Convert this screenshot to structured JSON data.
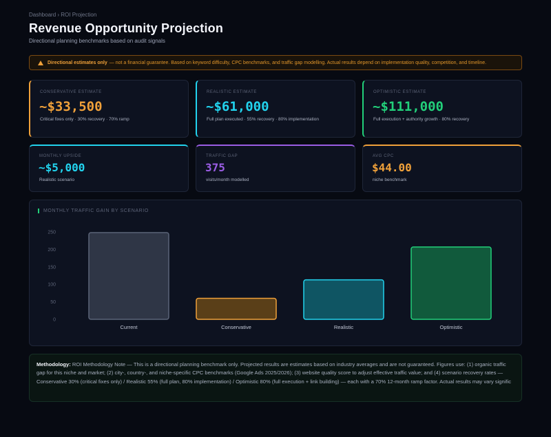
{
  "breadcrumb": "Dashboard › ROI Projection",
  "page": {
    "title": "Revenue Opportunity Projection",
    "subtitle": "Directional planning benchmarks based on audit signals"
  },
  "alert": {
    "strong": "Directional estimates only",
    "text": "— not a financial guarantee. Based on keyword difficulty, CPC benchmarks, and traffic gap modelling. Actual results depend on implementation quality, competition, and timeline."
  },
  "estimates": {
    "conservative": {
      "label": "Conservative Estimate",
      "value": "~$33,500",
      "sub": "Critical fixes only · 30% recovery · 70% ramp",
      "color": "#f0a13a"
    },
    "realistic": {
      "label": "Realistic Estimate",
      "value": "~$61,000",
      "sub": "Full plan executed · 55% recovery · 80% implementation",
      "color": "#22d3ee"
    },
    "optimistic": {
      "label": "Optimistic Estimate",
      "value": "~$111,000",
      "sub": "Full execution + authority growth · 80% recovery",
      "color": "#22d07a"
    }
  },
  "metrics": {
    "monthly_upside": {
      "label": "Monthly Upside",
      "value": "~$5,000",
      "sub": "Realistic scenario",
      "color": "#22d3ee"
    },
    "traffic_gap": {
      "label": "Traffic Gap",
      "value": "375",
      "sub": "visits/month modelled",
      "color": "#9b5de5"
    },
    "avg_cpc": {
      "label": "Avg CPC",
      "value": "$44.00",
      "sub": "niche benchmark",
      "color": "#f0a13a"
    }
  },
  "chart_data": {
    "type": "bar",
    "title": "Monthly Traffic Gain by Scenario",
    "categories": [
      "Current",
      "Conservative",
      "Realistic",
      "Optimistic"
    ],
    "values": [
      248,
      60,
      113,
      207
    ],
    "yticks": [
      0,
      50,
      100,
      150,
      200,
      250
    ],
    "ylim": [
      0,
      250
    ],
    "colors": [
      {
        "fill": "#2f3646",
        "stroke": "#5b6478"
      },
      {
        "fill": "#5a3f18",
        "stroke": "#f0a13a"
      },
      {
        "fill": "#0f5563",
        "stroke": "#22d3ee"
      },
      {
        "fill": "#115a3c",
        "stroke": "#22d07a"
      }
    ],
    "grid": false
  },
  "methodology": {
    "strong": "Methodology:",
    "text": "ROI Methodology Note — This is a directional planning benchmark only. Projected results are estimates based on industry averages and are not guaranteed. Figures use: (1) organic traffic gap for this niche and market; (2) city-, country-, and niche-specific CPC benchmarks (Google Ads 2025/2026); (3) website quality score to adjust effective traffic value; and (4) scenario recovery rates — Conservative 30% (critical fixes only) / Realistic 55% (full plan, 80% implementation) / Optimistic 80% (full execution + link building) — each with a 70% 12-month ramp factor. Actual results may vary signific"
  }
}
